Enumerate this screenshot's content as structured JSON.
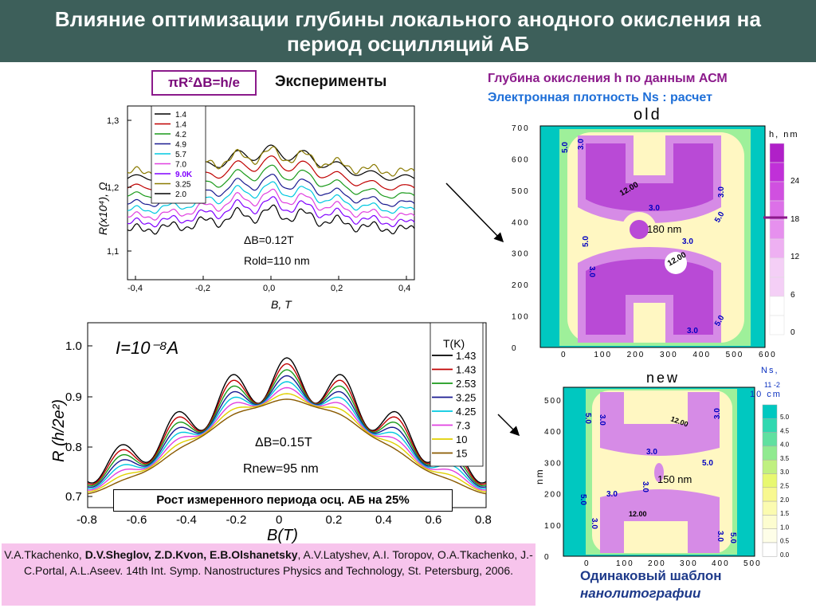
{
  "title": {
    "line1": "Влияние оптимизации глубины локального анодного окисления  на",
    "line2": "период осцилляций АБ"
  },
  "formula_label": "πR²ΔB=h/e",
  "experiments_label": "Эксперименты",
  "right_labels": {
    "depth": "Глубина окисления h по данным АСМ",
    "density": "Электронная плотность  Ns : расчет"
  },
  "top_chart": {
    "xlabel": "B, T",
    "ylabel": "R(x10⁴), Ω",
    "xticks": [
      "-0,4",
      "-0,2",
      "0,0",
      "0,2",
      "0,4"
    ],
    "yticks": [
      "1,3",
      "1,2",
      "1,1"
    ],
    "legend": [
      "1.4",
      "1.4",
      "4.2",
      "4.9",
      "5.7",
      "7.0",
      "9.0K",
      "3.25",
      "2.0"
    ],
    "annotation_db": "ΔB=0.12T",
    "annotation_r": "Rold=110 nm"
  },
  "bottom_chart": {
    "xlabel": "B(T)",
    "ylabel": "R (h/2e²)",
    "current": "I=10⁻⁸A",
    "xticks": [
      "-0.8",
      "-0.6",
      "-0.4",
      "-0.2",
      "0",
      "0.2",
      "0.4",
      "0.6",
      "0.8"
    ],
    "yticks": [
      "1.0",
      "0.9",
      "0.8",
      "0.7"
    ],
    "legend_title": "T(K)",
    "legend": [
      "1.43",
      "1.43",
      "2.53",
      "3.25",
      "4.25",
      "7.3",
      "10",
      "15"
    ],
    "annotation_db": "ΔB=0.15T",
    "annotation_r": "Rnew=95 nm",
    "growth_note": "Рост измеренного периода осц. АБ на 25%"
  },
  "map_old": {
    "title": "old",
    "yticks": [
      "700",
      "600",
      "500",
      "400",
      "300",
      "200",
      "100",
      "0"
    ],
    "xticks": [
      "0",
      "100",
      "200",
      "300",
      "400",
      "500",
      "600"
    ],
    "diam": "180 nm",
    "scale_title": "h, nm",
    "scale_ticks": [
      "24",
      "18",
      "12",
      "6",
      "0"
    ],
    "contours": [
      "5.0",
      "3.0",
      "12.00",
      "3.0",
      "5.0",
      "3.0",
      "12.00",
      "3.0",
      "5.0",
      "3.0",
      "5.0",
      "3.0"
    ]
  },
  "map_new": {
    "title": "new",
    "ylabel": "nm",
    "yticks": [
      "500",
      "400",
      "300",
      "200",
      "100",
      "0"
    ],
    "xticks": [
      "0",
      "100",
      "200",
      "300",
      "400",
      "500"
    ],
    "diam": "150 nm",
    "scale_title_1": "Ns,",
    "scale_title_2": "11 -2",
    "scale_title_3": "10 cm",
    "scale_ticks": [
      "5.0",
      "4.5",
      "4.0",
      "3.5",
      "3.0",
      "2.5",
      "2.0",
      "1.5",
      "1.0",
      "0.5",
      "0.0"
    ],
    "contours": [
      "5.0",
      "3.0",
      "12.00",
      "3.0",
      "3.0",
      "5.0",
      "3.0",
      "3.0",
      "5.0",
      "12.00",
      "3.0",
      "3.0",
      "5.0"
    ]
  },
  "references": {
    "pre": "V.A.Tkachenko, ",
    "bold": "D.V.Sheglov, Z.D.Kvon, E.B.Olshanetsky",
    "post": ", A.V.Latyshev, A.I. Toropov, O.A.Tkachenko, J.-C.Portal, A.L.Aseev. 14th Int. Symp. Nanostructures Physics and Technology, St. Petersburg,  2006."
  },
  "bottom_right": {
    "line1": "Одинаковый  шаблон",
    "line2": "нанолитографии"
  },
  "colors": {
    "title_bg": "#3d5f5a",
    "refs_bg": "#f7c4ec",
    "magenta": "#8b1a8b",
    "blue": "#1e6fd8"
  }
}
